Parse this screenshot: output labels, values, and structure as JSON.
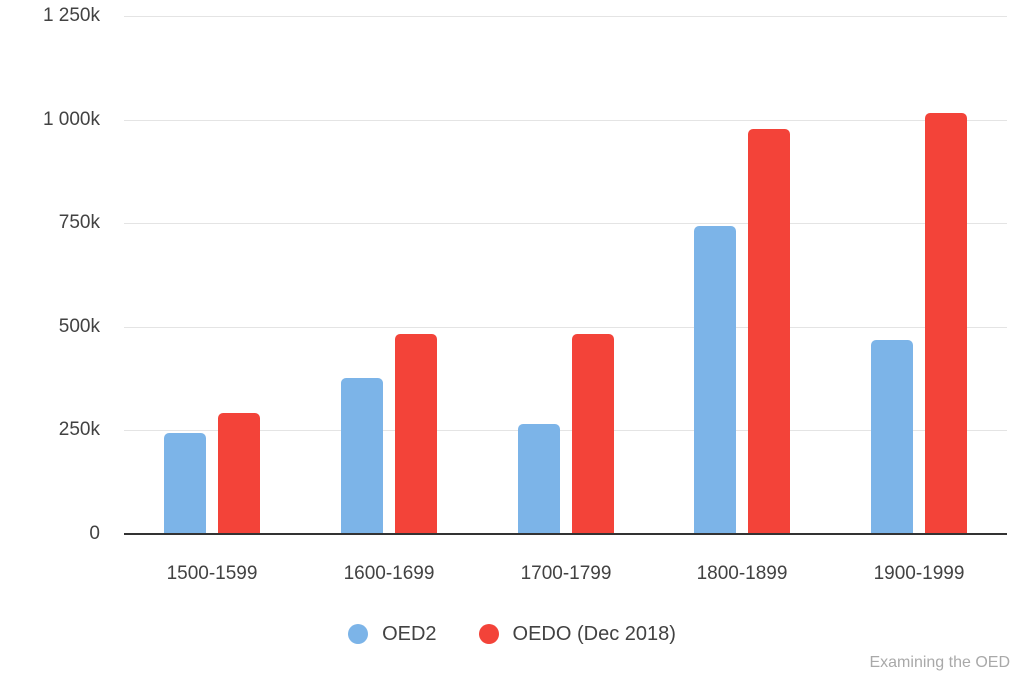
{
  "watermark": "Examining the OED",
  "chart_data": {
    "type": "bar",
    "title": "",
    "xlabel": "",
    "ylabel": "",
    "categories": [
      "1500-1599",
      "1600-1699",
      "1700-1799",
      "1800-1899",
      "1900-1999"
    ],
    "series": [
      {
        "name": "OED2",
        "color": "#7cb4e8",
        "values": [
          244000,
          377000,
          265000,
          744000,
          467000
        ]
      },
      {
        "name": "OEDO (Dec 2018)",
        "color": "#f34339",
        "values": [
          291000,
          483000,
          482000,
          978000,
          1016000
        ]
      }
    ],
    "ylim": [
      0,
      1250000
    ],
    "yticks": [
      {
        "value": 0,
        "label": "0"
      },
      {
        "value": 250000,
        "label": "250k"
      },
      {
        "value": 500000,
        "label": "500k"
      },
      {
        "value": 750000,
        "label": "750k"
      },
      {
        "value": 1000000,
        "label": "1 000k"
      },
      {
        "value": 1250000,
        "label": "1 250k"
      }
    ],
    "grid": "horizontal",
    "legend_position": "bottom"
  }
}
